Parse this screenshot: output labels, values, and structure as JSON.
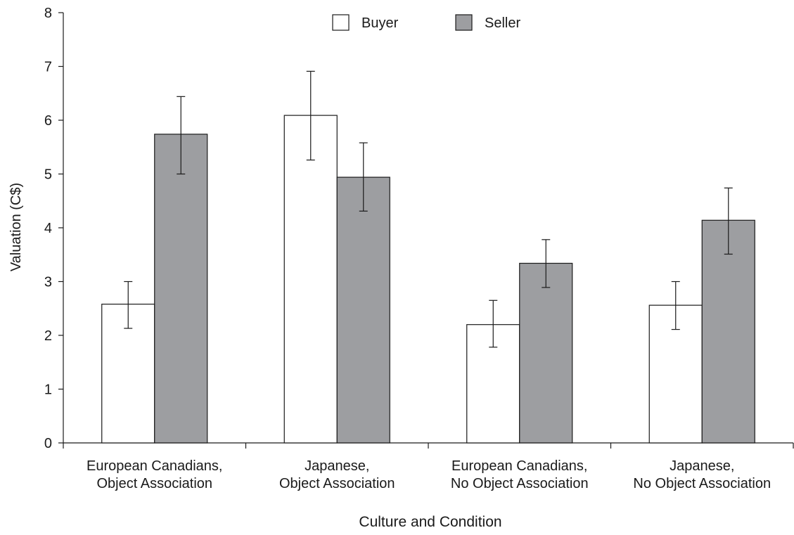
{
  "chart_data": {
    "type": "bar",
    "title": "",
    "xlabel": "Culture and Condition",
    "ylabel": "Valuation (C$)",
    "ylim": [
      0,
      8
    ],
    "yticks": [
      0,
      1,
      2,
      3,
      4,
      5,
      6,
      7,
      8
    ],
    "grid": false,
    "legend_position": "top-center",
    "categories": [
      [
        "European Canadians,",
        "Object Association"
      ],
      [
        "Japanese,",
        "Object Association"
      ],
      [
        "European Canadians,",
        "No Object Association"
      ],
      [
        "Japanese,",
        "No Object Association"
      ]
    ],
    "series": [
      {
        "name": "Buyer",
        "color": "#ffffff",
        "values": [
          2.58,
          6.09,
          2.2,
          2.56
        ],
        "error_low": [
          2.13,
          5.26,
          1.78,
          2.11
        ],
        "error_high": [
          3.0,
          6.91,
          2.65,
          3.0
        ]
      },
      {
        "name": "Seller",
        "color": "#9d9ea1",
        "values": [
          5.74,
          4.94,
          3.34,
          4.14
        ],
        "error_low": [
          5.0,
          4.31,
          2.89,
          3.51
        ],
        "error_high": [
          6.44,
          5.58,
          3.78,
          4.74
        ]
      }
    ]
  }
}
